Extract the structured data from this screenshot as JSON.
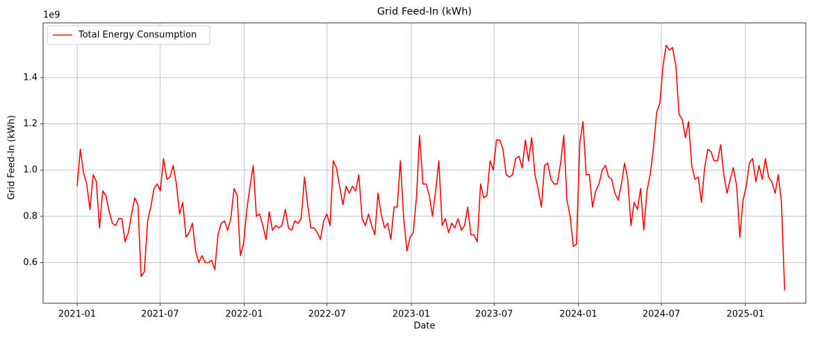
{
  "chart_data": {
    "type": "line",
    "title": "Grid Feed-In (kWh)",
    "x_label": "Date",
    "y_label": "Grid Feed-In (kWh)",
    "y_offset_label": "1e9",
    "x": [
      2021.0,
      2021.019,
      2021.038,
      2021.057,
      2021.077,
      2021.096,
      2021.115,
      2021.134,
      2021.153,
      2021.172,
      2021.192,
      2021.211,
      2021.23,
      2021.249,
      2021.268,
      2021.287,
      2021.307,
      2021.326,
      2021.345,
      2021.364,
      2021.383,
      2021.402,
      2021.422,
      2021.441,
      2021.46,
      2021.479,
      2021.498,
      2021.517,
      2021.537,
      2021.556,
      2021.575,
      2021.594,
      2021.613,
      2021.632,
      2021.652,
      2021.671,
      2021.69,
      2021.709,
      2021.728,
      2021.747,
      2021.767,
      2021.786,
      2021.805,
      2021.824,
      2021.843,
      2021.862,
      2021.882,
      2021.901,
      2021.92,
      2021.939,
      2021.958,
      2021.977,
      2021.996,
      2022.016,
      2022.035,
      2022.054,
      2022.073,
      2022.092,
      2022.111,
      2022.131,
      2022.15,
      2022.169,
      2022.188,
      2022.207,
      2022.226,
      2022.246,
      2022.265,
      2022.284,
      2022.303,
      2022.322,
      2022.341,
      2022.361,
      2022.38,
      2022.399,
      2022.418,
      2022.437,
      2022.456,
      2022.476,
      2022.495,
      2022.514,
      2022.533,
      2022.552,
      2022.571,
      2022.591,
      2022.61,
      2022.629,
      2022.648,
      2022.667,
      2022.686,
      2022.706,
      2022.725,
      2022.744,
      2022.763,
      2022.782,
      2022.801,
      2022.82,
      2022.84,
      2022.859,
      2022.878,
      2022.897,
      2022.916,
      2022.935,
      2022.955,
      2022.974,
      2022.993,
      2023.012,
      2023.031,
      2023.05,
      2023.07,
      2023.089,
      2023.108,
      2023.127,
      2023.146,
      2023.165,
      2023.185,
      2023.204,
      2023.223,
      2023.242,
      2023.261,
      2023.28,
      2023.3,
      2023.319,
      2023.338,
      2023.357,
      2023.376,
      2023.395,
      2023.415,
      2023.434,
      2023.453,
      2023.472,
      2023.491,
      2023.51,
      2023.53,
      2023.549,
      2023.568,
      2023.587,
      2023.606,
      2023.625,
      2023.645,
      2023.664,
      2023.683,
      2023.702,
      2023.721,
      2023.74,
      2023.759,
      2023.779,
      2023.798,
      2023.817,
      2023.836,
      2023.855,
      2023.874,
      2023.894,
      2023.913,
      2023.932,
      2023.951,
      2023.97,
      2023.989,
      2024.009,
      2024.028,
      2024.047,
      2024.066,
      2024.085,
      2024.104,
      2024.124,
      2024.143,
      2024.162,
      2024.181,
      2024.2,
      2024.219,
      2024.239,
      2024.258,
      2024.277,
      2024.296,
      2024.315,
      2024.334,
      2024.354,
      2024.373,
      2024.392,
      2024.411,
      2024.43,
      2024.449,
      2024.469,
      2024.488,
      2024.507,
      2024.526,
      2024.545,
      2024.564,
      2024.584,
      2024.603,
      2024.622,
      2024.641,
      2024.66,
      2024.679,
      2024.698,
      2024.718,
      2024.737,
      2024.756,
      2024.775,
      2024.794,
      2024.813,
      2024.833,
      2024.852,
      2024.871,
      2024.89,
      2024.909,
      2024.928,
      2024.948,
      2024.967,
      2024.986,
      2025.005,
      2025.024,
      2025.043,
      2025.063,
      2025.082,
      2025.101,
      2025.12,
      2025.139,
      2025.158,
      2025.178,
      2025.197,
      2025.216,
      2025.235
    ],
    "series": [
      {
        "name": "Total Energy Consumption",
        "color": "#ff0000",
        "values": [
          0.93,
          1.09,
          0.99,
          0.94,
          0.83,
          0.98,
          0.95,
          0.75,
          0.91,
          0.89,
          0.82,
          0.77,
          0.76,
          0.79,
          0.79,
          0.69,
          0.73,
          0.81,
          0.88,
          0.85,
          0.54,
          0.56,
          0.78,
          0.84,
          0.92,
          0.94,
          0.91,
          1.05,
          0.96,
          0.97,
          1.02,
          0.94,
          0.81,
          0.86,
          0.71,
          0.73,
          0.77,
          0.65,
          0.6,
          0.63,
          0.6,
          0.6,
          0.61,
          0.57,
          0.72,
          0.77,
          0.78,
          0.74,
          0.79,
          0.92,
          0.89,
          0.63,
          0.68,
          0.83,
          0.93,
          1.02,
          0.8,
          0.81,
          0.76,
          0.7,
          0.82,
          0.74,
          0.76,
          0.75,
          0.76,
          0.83,
          0.75,
          0.74,
          0.78,
          0.77,
          0.79,
          0.97,
          0.85,
          0.75,
          0.75,
          0.73,
          0.7,
          0.78,
          0.81,
          0.76,
          1.04,
          1.01,
          0.93,
          0.85,
          0.93,
          0.9,
          0.93,
          0.91,
          0.98,
          0.79,
          0.76,
          0.81,
          0.76,
          0.72,
          0.9,
          0.81,
          0.75,
          0.77,
          0.7,
          0.84,
          0.84,
          1.04,
          0.79,
          0.65,
          0.71,
          0.73,
          0.88,
          1.15,
          0.94,
          0.94,
          0.89,
          0.8,
          0.91,
          1.04,
          0.76,
          0.79,
          0.73,
          0.77,
          0.75,
          0.79,
          0.74,
          0.76,
          0.84,
          0.72,
          0.72,
          0.69,
          0.94,
          0.88,
          0.89,
          1.04,
          1.0,
          1.13,
          1.13,
          1.09,
          0.98,
          0.97,
          0.98,
          1.05,
          1.06,
          1.01,
          1.13,
          1.04,
          1.14,
          0.98,
          0.92,
          0.84,
          1.02,
          1.03,
          0.96,
          0.94,
          0.94,
          1.03,
          1.15,
          0.87,
          0.8,
          0.67,
          0.68,
          1.12,
          1.21,
          0.98,
          0.98,
          0.84,
          0.91,
          0.94,
          1.0,
          1.02,
          0.97,
          0.96,
          0.9,
          0.87,
          0.94,
          1.03,
          0.96,
          0.76,
          0.86,
          0.83,
          0.92,
          0.74,
          0.91,
          0.98,
          1.09,
          1.25,
          1.29,
          1.45,
          1.54,
          1.52,
          1.53,
          1.45,
          1.24,
          1.22,
          1.14,
          1.21,
          1.02,
          0.96,
          0.97,
          0.86,
          1.01,
          1.09,
          1.08,
          1.04,
          1.04,
          1.11,
          0.98,
          0.9,
          0.96,
          1.01,
          0.93,
          0.71,
          0.87,
          0.93,
          1.03,
          1.05,
          0.95,
          1.02,
          0.96,
          1.05,
          0.97,
          0.95,
          0.9,
          0.98,
          0.86,
          0.48
        ]
      }
    ],
    "xlim": [
      2020.796,
      2025.362
    ],
    "xticks": [
      {
        "value": 2021.0,
        "label": "2021-01"
      },
      {
        "value": 2021.496,
        "label": "2021-07"
      },
      {
        "value": 2022.0,
        "label": "2022-01"
      },
      {
        "value": 2022.496,
        "label": "2022-07"
      },
      {
        "value": 2023.0,
        "label": "2023-01"
      },
      {
        "value": 2023.496,
        "label": "2023-07"
      },
      {
        "value": 2024.0,
        "label": "2024-01"
      },
      {
        "value": 2024.497,
        "label": "2024-07"
      },
      {
        "value": 2025.0,
        "label": "2025-01"
      }
    ],
    "ylim": [
      0.424,
      1.637
    ],
    "yticks": [
      0.6,
      0.8,
      {
        "value": 1,
        "label": "1.0"
      },
      1.2,
      1.4
    ],
    "grid": true,
    "legend": "upper left"
  }
}
